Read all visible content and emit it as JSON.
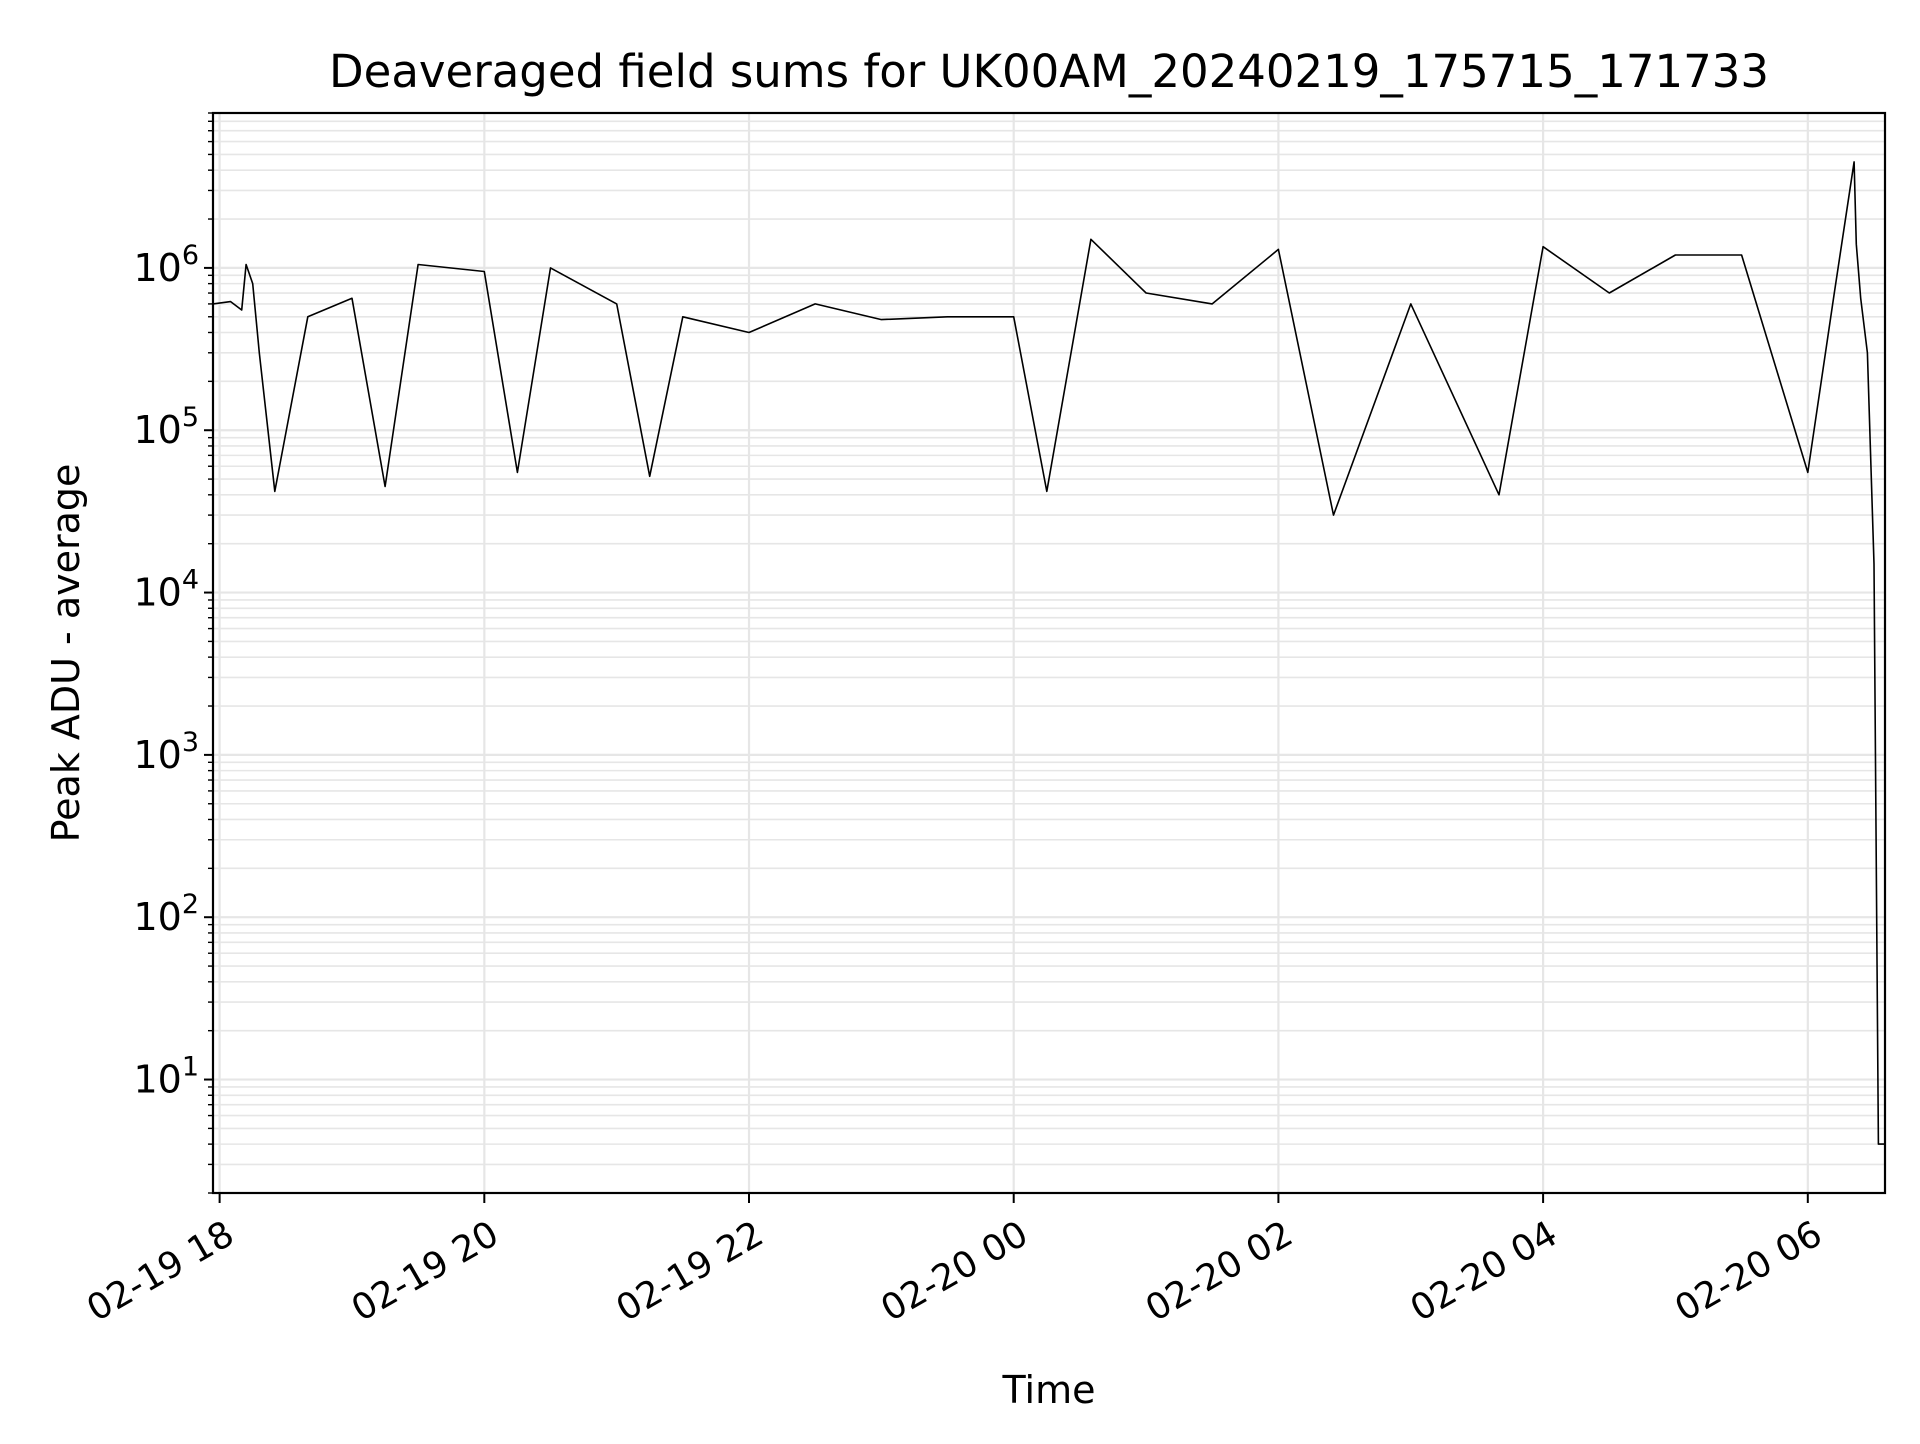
{
  "chart_data": {
    "type": "line",
    "title": "Deaveraged field sums for UK00AM_20240219_175715_171733",
    "xlabel": "Time",
    "ylabel": "Peak ADU - average",
    "yscale": "log",
    "ylim": [
      2,
      9000000
    ],
    "xlim": [
      "2024-02-19 17:57",
      "2024-02-20 06:35"
    ],
    "grid": true,
    "line_color": "#000000",
    "grid_color": "#e6e6e6",
    "x_ticks": [
      {
        "time": "2024-02-19 18:00",
        "label": "02-19 18"
      },
      {
        "time": "2024-02-19 20:00",
        "label": "02-19 20"
      },
      {
        "time": "2024-02-19 22:00",
        "label": "02-19 22"
      },
      {
        "time": "2024-02-20 00:00",
        "label": "02-20 00"
      },
      {
        "time": "2024-02-20 02:00",
        "label": "02-20 02"
      },
      {
        "time": "2024-02-20 04:00",
        "label": "02-20 04"
      },
      {
        "time": "2024-02-20 06:00",
        "label": "02-20 06"
      }
    ],
    "y_ticks": [
      {
        "value": 10,
        "base": "10",
        "exp": "1"
      },
      {
        "value": 100,
        "base": "10",
        "exp": "2"
      },
      {
        "value": 1000,
        "base": "10",
        "exp": "3"
      },
      {
        "value": 10000,
        "base": "10",
        "exp": "4"
      },
      {
        "value": 100000,
        "base": "10",
        "exp": "5"
      },
      {
        "value": 1000000,
        "base": "10",
        "exp": "6"
      }
    ],
    "series": [
      {
        "color": "#000000",
        "points": [
          [
            "2024-02-19 17:57",
            600000
          ],
          [
            "2024-02-19 18:05",
            620000
          ],
          [
            "2024-02-19 18:10",
            550000
          ],
          [
            "2024-02-19 18:12",
            1050000
          ],
          [
            "2024-02-19 18:15",
            800000
          ],
          [
            "2024-02-19 18:18",
            300000
          ],
          [
            "2024-02-19 18:25",
            42000
          ],
          [
            "2024-02-19 18:40",
            500000
          ],
          [
            "2024-02-19 19:00",
            650000
          ],
          [
            "2024-02-19 19:15",
            45000
          ],
          [
            "2024-02-19 19:30",
            1050000
          ],
          [
            "2024-02-19 20:00",
            950000
          ],
          [
            "2024-02-19 20:15",
            55000
          ],
          [
            "2024-02-19 20:30",
            1000000
          ],
          [
            "2024-02-19 21:00",
            600000
          ],
          [
            "2024-02-19 21:15",
            52000
          ],
          [
            "2024-02-19 21:30",
            500000
          ],
          [
            "2024-02-19 22:00",
            400000
          ],
          [
            "2024-02-19 22:30",
            600000
          ],
          [
            "2024-02-19 23:00",
            480000
          ],
          [
            "2024-02-19 23:30",
            500000
          ],
          [
            "2024-02-20 00:00",
            500000
          ],
          [
            "2024-02-20 00:15",
            42000
          ],
          [
            "2024-02-20 00:35",
            1500000
          ],
          [
            "2024-02-20 01:00",
            700000
          ],
          [
            "2024-02-20 01:30",
            600000
          ],
          [
            "2024-02-20 02:00",
            1300000
          ],
          [
            "2024-02-20 02:25",
            30000
          ],
          [
            "2024-02-20 03:00",
            600000
          ],
          [
            "2024-02-20 03:40",
            40000
          ],
          [
            "2024-02-20 04:00",
            1350000
          ],
          [
            "2024-02-20 04:30",
            700000
          ],
          [
            "2024-02-20 05:00",
            1200000
          ],
          [
            "2024-02-20 05:30",
            1200000
          ],
          [
            "2024-02-20 06:00",
            55000
          ],
          [
            "2024-02-20 06:12",
            700000
          ],
          [
            "2024-02-20 06:21",
            4500000
          ],
          [
            "2024-02-20 06:22",
            1400000
          ],
          [
            "2024-02-20 06:24",
            650000
          ],
          [
            "2024-02-20 06:27",
            300000
          ],
          [
            "2024-02-20 06:30",
            15000
          ],
          [
            "2024-02-20 06:32",
            4
          ],
          [
            "2024-02-20 06:35",
            4
          ]
        ]
      }
    ]
  }
}
